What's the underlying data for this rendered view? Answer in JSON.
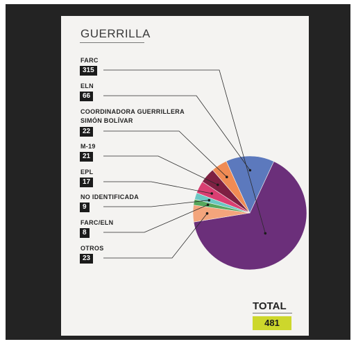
{
  "title": "GUERRILLA",
  "total": {
    "label": "TOTAL",
    "value": "481"
  },
  "chart_data": {
    "type": "pie",
    "title": "GUERRILLA",
    "total": 481,
    "slices": [
      {
        "label": "FARC",
        "value": 315,
        "color": "#6b2f7a"
      },
      {
        "label": "OTROS",
        "value": 23,
        "color": "#f3a57c"
      },
      {
        "label": "FARC/ELN",
        "value": 8,
        "color": "#57a85c"
      },
      {
        "label": "NO IDENTIFICADA",
        "value": 9,
        "color": "#6bc7c3"
      },
      {
        "label": "EPL",
        "value": 17,
        "color": "#d93f72"
      },
      {
        "label": "M-19",
        "value": 21,
        "color": "#7e2042"
      },
      {
        "label": "COORDINADORA GUERRILLERA SIMÓN BOLÍVAR",
        "value": 22,
        "color": "#f08b54"
      },
      {
        "label": "ELN",
        "value": 66,
        "color": "#5c79bd"
      }
    ]
  },
  "legend": [
    {
      "lines": [
        "FARC"
      ],
      "value": "315"
    },
    {
      "lines": [
        "ELN"
      ],
      "value": "66"
    },
    {
      "lines": [
        "COORDINADORA GUERRILLERA",
        "SIMÓN BOLÍVAR"
      ],
      "value": "22"
    },
    {
      "lines": [
        "M-19"
      ],
      "value": "21"
    },
    {
      "lines": [
        "EPL"
      ],
      "value": "17"
    },
    {
      "lines": [
        "NO IDENTIFICADA"
      ],
      "value": "9"
    },
    {
      "lines": [
        "FARC/ELN"
      ],
      "value": "8"
    },
    {
      "lines": [
        "OTROS"
      ],
      "value": "23"
    }
  ]
}
